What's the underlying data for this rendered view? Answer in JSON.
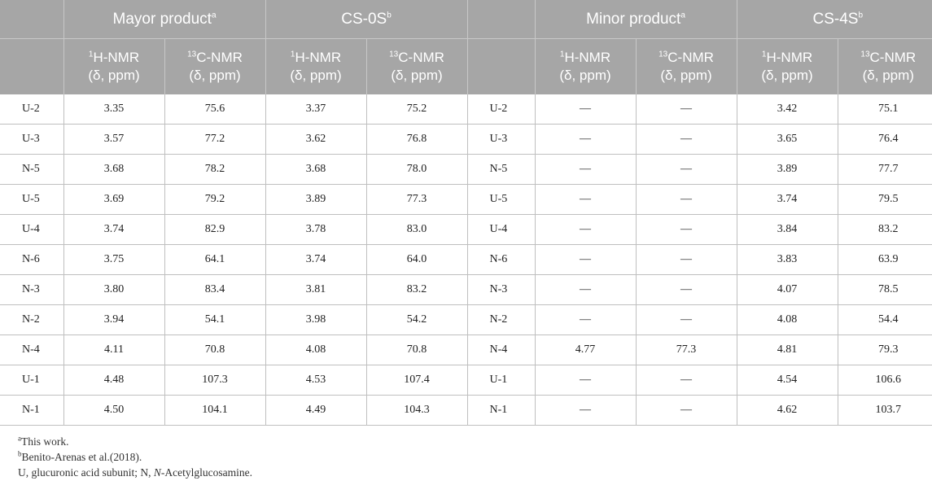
{
  "header": {
    "groups": [
      {
        "label": "Mayor product",
        "sup": "a"
      },
      {
        "label": "CS-0S",
        "sup": "b"
      },
      {
        "label": "Minor product",
        "sup": "a"
      },
      {
        "label": "CS-4S",
        "sup": "b"
      }
    ],
    "col_h": {
      "sup": "1",
      "text": "H-NMR",
      "unit": "(δ, ppm)"
    },
    "col_c": {
      "sup": "13",
      "text": "C-NMR",
      "unit": "(δ, ppm)"
    }
  },
  "rows": [
    {
      "label": "U-2",
      "mh": "3.35",
      "mc": "75.6",
      "s0h": "3.37",
      "s0c": "75.2",
      "label2": "U-2",
      "nh": "—",
      "nc": "—",
      "s4h": "3.42",
      "s4c": "75.1"
    },
    {
      "label": "U-3",
      "mh": "3.57",
      "mc": "77.2",
      "s0h": "3.62",
      "s0c": "76.8",
      "label2": "U-3",
      "nh": "—",
      "nc": "—",
      "s4h": "3.65",
      "s4c": "76.4"
    },
    {
      "label": "N-5",
      "mh": "3.68",
      "mc": "78.2",
      "s0h": "3.68",
      "s0c": "78.0",
      "label2": "N-5",
      "nh": "—",
      "nc": "—",
      "s4h": "3.89",
      "s4c": "77.7"
    },
    {
      "label": "U-5",
      "mh": "3.69",
      "mc": "79.2",
      "s0h": "3.89",
      "s0c": "77.3",
      "label2": "U-5",
      "nh": "—",
      "nc": "—",
      "s4h": "3.74",
      "s4c": "79.5"
    },
    {
      "label": "U-4",
      "mh": "3.74",
      "mc": "82.9",
      "s0h": "3.78",
      "s0c": "83.0",
      "label2": "U-4",
      "nh": "—",
      "nc": "—",
      "s4h": "3.84",
      "s4c": "83.2"
    },
    {
      "label": "N-6",
      "mh": "3.75",
      "mc": "64.1",
      "s0h": "3.74",
      "s0c": "64.0",
      "label2": "N-6",
      "nh": "—",
      "nc": "—",
      "s4h": "3.83",
      "s4c": "63.9"
    },
    {
      "label": "N-3",
      "mh": "3.80",
      "mc": "83.4",
      "s0h": "3.81",
      "s0c": "83.2",
      "label2": "N-3",
      "nh": "—",
      "nc": "—",
      "s4h": "4.07",
      "s4c": "78.5"
    },
    {
      "label": "N-2",
      "mh": "3.94",
      "mc": "54.1",
      "s0h": "3.98",
      "s0c": "54.2",
      "label2": "N-2",
      "nh": "—",
      "nc": "—",
      "s4h": "4.08",
      "s4c": "54.4"
    },
    {
      "label": "N-4",
      "mh": "4.11",
      "mc": "70.8",
      "s0h": "4.08",
      "s0c": "70.8",
      "label2": "N-4",
      "nh": "4.77",
      "nc": "77.3",
      "s4h": "4.81",
      "s4c": "79.3"
    },
    {
      "label": "U-1",
      "mh": "4.48",
      "mc": "107.3",
      "s0h": "4.53",
      "s0c": "107.4",
      "label2": "U-1",
      "nh": "—",
      "nc": "—",
      "s4h": "4.54",
      "s4c": "106.6"
    },
    {
      "label": "N-1",
      "mh": "4.50",
      "mc": "104.1",
      "s0h": "4.49",
      "s0c": "104.3",
      "label2": "N-1",
      "nh": "—",
      "nc": "—",
      "s4h": "4.62",
      "s4c": "103.7"
    }
  ],
  "footnotes": {
    "a": {
      "sup": "a",
      "text": "This work."
    },
    "b": {
      "sup": "b",
      "text": "Benito-Arenas et al.(2018)."
    },
    "c": {
      "text_before": "U, glucuronic acid subunit; N, ",
      "italic": "N",
      "text_after": "-Acetylglucosamine."
    }
  }
}
